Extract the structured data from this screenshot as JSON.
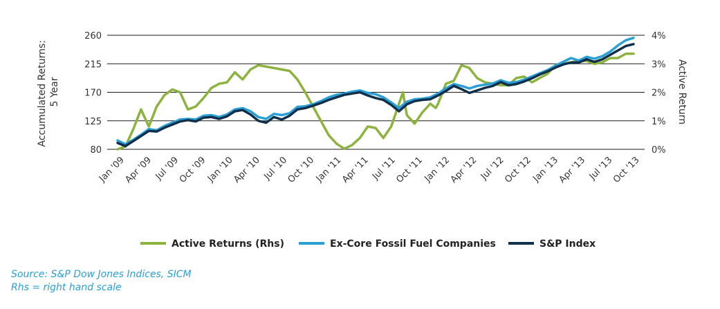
{
  "chart_data": {
    "type": "line",
    "xlabel": "",
    "ylabel": "Accumulated Returns: 5 Year",
    "ylabel_lines": [
      "Accumulated Returns:",
      "5 Year"
    ],
    "y2label": "Active Return",
    "ylim": [
      80,
      260
    ],
    "y2lim": [
      0,
      4
    ],
    "yticks": [
      "80",
      "125",
      "170",
      "215",
      "260"
    ],
    "y2ticks": [
      "0%",
      "1%",
      "2%",
      "3%",
      "4%"
    ],
    "grid": true,
    "legend_position": "bottom",
    "x_tick_labels": [
      "Jan '09",
      "Apr '09",
      "Jul '09",
      "Oct '09",
      "Jan '10",
      "Apr '10",
      "Jul '10",
      "Oct '10",
      "Jan '11",
      "Apr '11",
      "Jul '11",
      "Oct '11",
      "Jan '12",
      "Apr '12",
      "Jul '12",
      "Oct '12",
      "Jan '13",
      "Apr '13",
      "Jul '13",
      "Oct '13"
    ],
    "series": [
      {
        "name": "Active Returns (Rhs)",
        "axis": "right",
        "color": "#8cb33d",
        "points": [
          [
            0,
            0
          ],
          [
            0.5,
            0.05
          ],
          [
            1,
            0.1
          ],
          [
            2,
            0.7
          ],
          [
            3,
            1.4
          ],
          [
            4,
            0.8
          ],
          [
            5,
            1.5
          ],
          [
            6,
            1.9
          ],
          [
            7,
            2.1
          ],
          [
            8,
            2.0
          ],
          [
            9,
            1.4
          ],
          [
            10,
            1.5
          ],
          [
            11,
            1.8
          ],
          [
            12,
            2.15
          ],
          [
            13,
            2.3
          ],
          [
            14,
            2.35
          ],
          [
            15,
            2.7
          ],
          [
            16,
            2.45
          ],
          [
            17,
            2.8
          ],
          [
            18,
            2.95
          ],
          [
            19,
            2.9
          ],
          [
            20,
            2.85
          ],
          [
            21,
            2.8
          ],
          [
            22,
            2.75
          ],
          [
            23,
            2.45
          ],
          [
            24,
            2.0
          ],
          [
            25,
            1.5
          ],
          [
            26,
            1.0
          ],
          [
            27,
            0.5
          ],
          [
            28,
            0.2
          ],
          [
            29,
            0.02
          ],
          [
            30,
            0.15
          ],
          [
            31,
            0.4
          ],
          [
            32,
            0.8
          ],
          [
            33,
            0.75
          ],
          [
            34,
            0.4
          ],
          [
            35,
            0.8
          ],
          [
            36,
            1.6
          ],
          [
            36.5,
            2.0
          ],
          [
            37,
            1.2
          ],
          [
            38,
            0.9
          ],
          [
            39,
            1.3
          ],
          [
            40,
            1.6
          ],
          [
            40.7,
            1.45
          ],
          [
            41,
            1.6
          ],
          [
            42,
            2.3
          ],
          [
            43,
            2.4
          ],
          [
            44,
            2.95
          ],
          [
            45,
            2.85
          ],
          [
            46,
            2.5
          ],
          [
            47,
            2.35
          ],
          [
            48,
            2.3
          ],
          [
            49,
            2.25
          ],
          [
            50,
            2.25
          ],
          [
            51,
            2.5
          ],
          [
            52,
            2.55
          ],
          [
            53,
            2.35
          ],
          [
            54,
            2.5
          ],
          [
            55,
            2.65
          ],
          [
            56,
            2.95
          ],
          [
            57,
            3.0
          ],
          [
            58,
            3.05
          ],
          [
            59,
            3.1
          ],
          [
            60,
            3.1
          ],
          [
            61,
            3.0
          ],
          [
            62,
            3.05
          ],
          [
            63,
            3.2
          ],
          [
            64,
            3.2
          ],
          [
            65,
            3.35
          ],
          [
            66,
            3.35
          ]
        ]
      },
      {
        "name": "Ex-Core Fossil Fuel Companies",
        "axis": "left",
        "color": "#2a9fd6",
        "points": [
          [
            0,
            94
          ],
          [
            1,
            88
          ],
          [
            2,
            95
          ],
          [
            3,
            103
          ],
          [
            4,
            112
          ],
          [
            5,
            110
          ],
          [
            6,
            117
          ],
          [
            7,
            122
          ],
          [
            8,
            127
          ],
          [
            9,
            128
          ],
          [
            10,
            127
          ],
          [
            11,
            133
          ],
          [
            12,
            134
          ],
          [
            13,
            131
          ],
          [
            14,
            135
          ],
          [
            15,
            143
          ],
          [
            16,
            145
          ],
          [
            17,
            140
          ],
          [
            18,
            131
          ],
          [
            19,
            128
          ],
          [
            20,
            136
          ],
          [
            21,
            134
          ],
          [
            22,
            137
          ],
          [
            23,
            147
          ],
          [
            24,
            148
          ],
          [
            25,
            151
          ],
          [
            26,
            156
          ],
          [
            27,
            162
          ],
          [
            28,
            166
          ],
          [
            29,
            168
          ],
          [
            30,
            171
          ],
          [
            31,
            173
          ],
          [
            32,
            169
          ],
          [
            33,
            167
          ],
          [
            34,
            162
          ],
          [
            35,
            154
          ],
          [
            36,
            145
          ],
          [
            37,
            155
          ],
          [
            38,
            159
          ],
          [
            39,
            160
          ],
          [
            40,
            162
          ],
          [
            41,
            168
          ],
          [
            42,
            176
          ],
          [
            43,
            183
          ],
          [
            44,
            180
          ],
          [
            45,
            176
          ],
          [
            46,
            180
          ],
          [
            47,
            182
          ],
          [
            48,
            184
          ],
          [
            49,
            189
          ],
          [
            50,
            185
          ],
          [
            51,
            186
          ],
          [
            52,
            190
          ],
          [
            53,
            195
          ],
          [
            54,
            200
          ],
          [
            55,
            205
          ],
          [
            56,
            212
          ],
          [
            57,
            218
          ],
          [
            58,
            224
          ],
          [
            59,
            220
          ],
          [
            60,
            226
          ],
          [
            61,
            223
          ],
          [
            62,
            227
          ],
          [
            63,
            234
          ],
          [
            64,
            244
          ],
          [
            65,
            252
          ],
          [
            66,
            256
          ]
        ]
      },
      {
        "name": "S&P Index",
        "axis": "left",
        "color": "#0f2f4a",
        "points": [
          [
            0,
            90
          ],
          [
            1,
            85
          ],
          [
            2,
            93
          ],
          [
            3,
            101
          ],
          [
            4,
            109
          ],
          [
            5,
            108
          ],
          [
            6,
            114
          ],
          [
            7,
            119
          ],
          [
            8,
            124
          ],
          [
            9,
            126
          ],
          [
            10,
            124
          ],
          [
            11,
            130
          ],
          [
            12,
            131
          ],
          [
            13,
            128
          ],
          [
            14,
            132
          ],
          [
            15,
            140
          ],
          [
            16,
            142
          ],
          [
            17,
            135
          ],
          [
            18,
            125
          ],
          [
            19,
            122
          ],
          [
            20,
            131
          ],
          [
            21,
            127
          ],
          [
            22,
            133
          ],
          [
            23,
            143
          ],
          [
            24,
            145
          ],
          [
            25,
            149
          ],
          [
            26,
            153
          ],
          [
            27,
            158
          ],
          [
            28,
            162
          ],
          [
            29,
            166
          ],
          [
            30,
            168
          ],
          [
            31,
            170
          ],
          [
            32,
            165
          ],
          [
            33,
            161
          ],
          [
            34,
            158
          ],
          [
            35,
            150
          ],
          [
            36,
            140
          ],
          [
            37,
            151
          ],
          [
            38,
            156
          ],
          [
            39,
            158
          ],
          [
            40,
            159
          ],
          [
            41,
            165
          ],
          [
            42,
            172
          ],
          [
            43,
            180
          ],
          [
            44,
            175
          ],
          [
            45,
            169
          ],
          [
            46,
            173
          ],
          [
            47,
            177
          ],
          [
            48,
            180
          ],
          [
            49,
            186
          ],
          [
            50,
            181
          ],
          [
            51,
            183
          ],
          [
            52,
            187
          ],
          [
            53,
            192
          ],
          [
            54,
            198
          ],
          [
            55,
            203
          ],
          [
            56,
            209
          ],
          [
            57,
            214
          ],
          [
            58,
            217
          ],
          [
            59,
            217
          ],
          [
            60,
            222
          ],
          [
            61,
            218
          ],
          [
            62,
            222
          ],
          [
            63,
            229
          ],
          [
            64,
            236
          ],
          [
            65,
            243
          ],
          [
            66,
            246
          ]
        ]
      }
    ]
  },
  "legend": [
    {
      "label": "Active Returns (Rhs)",
      "color": "#8cb33d"
    },
    {
      "label": "Ex-Core Fossil Fuel Companies",
      "color": "#2a9fd6"
    },
    {
      "label": "S&P Index",
      "color": "#0f2f4a"
    }
  ],
  "footer": {
    "source": "Source: S&P Dow Jones Indices, SICM",
    "note": "Rhs = right hand scale"
  }
}
